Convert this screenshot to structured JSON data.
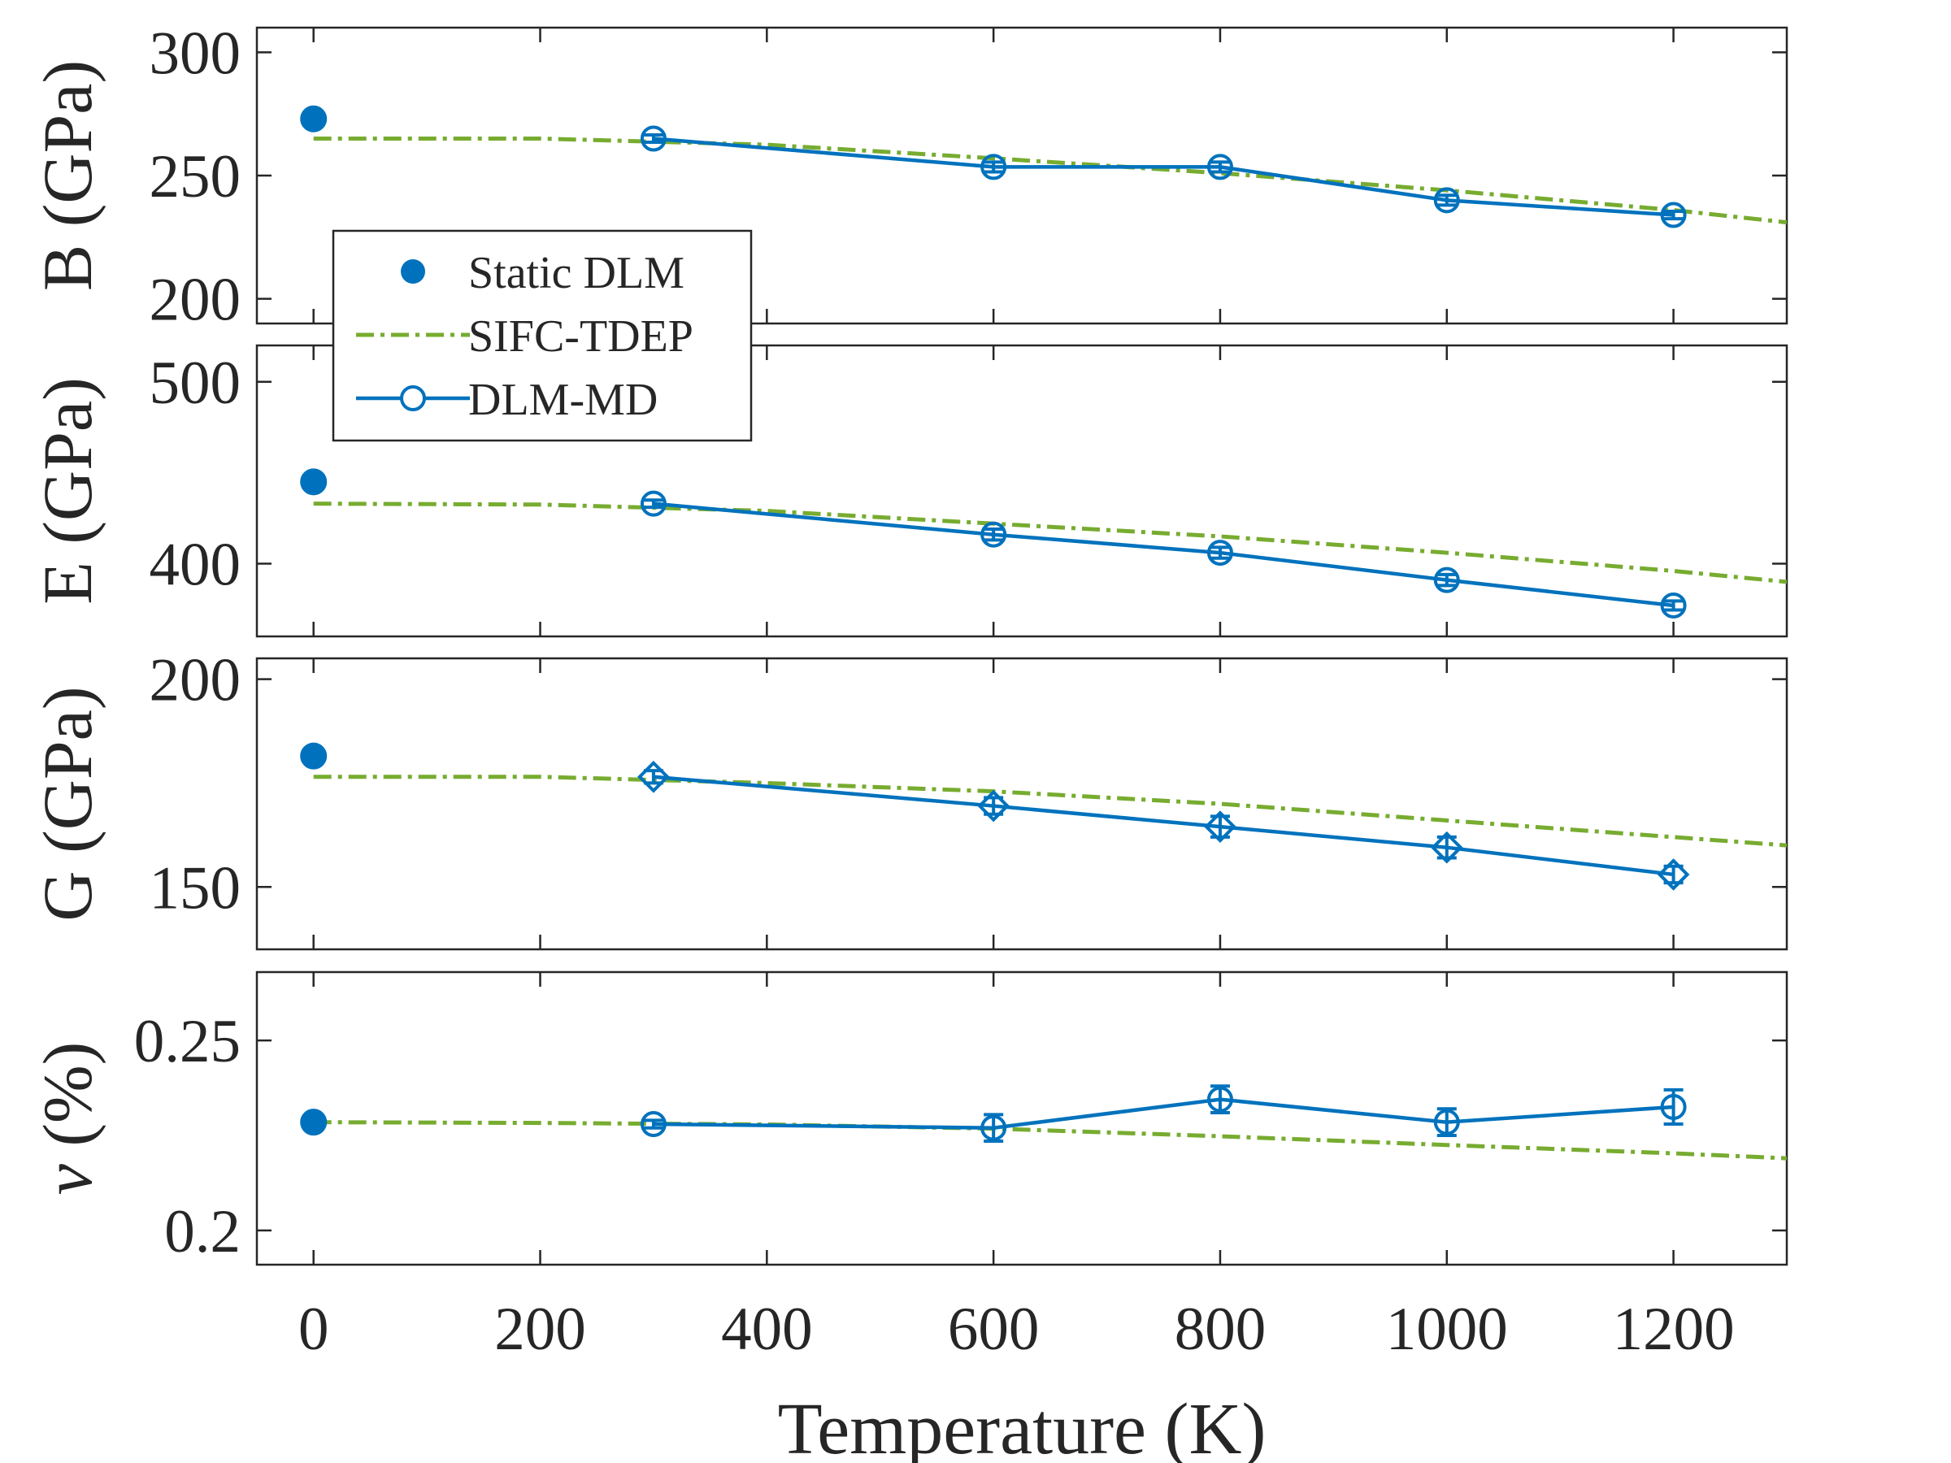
{
  "chart_data": {
    "type": "line",
    "xlabel": "Temperature (K)",
    "xlim": [
      -50,
      1300
    ],
    "xticks": [
      0,
      200,
      400,
      600,
      800,
      1000,
      1200
    ],
    "colors": {
      "static": "#0072bd",
      "dlm_md": "#0072bd",
      "sifc": "#77ac30",
      "axis": "#262626"
    },
    "legend": {
      "position": "top-left",
      "entries": [
        {
          "label": "Static DLM",
          "marker": "filled-circle"
        },
        {
          "label": "SIFC-TDEP",
          "marker": "dash-dot-line"
        },
        {
          "label": "DLM-MD",
          "marker": "line-open-circle"
        }
      ]
    },
    "panels": [
      {
        "id": "B",
        "ylabel": "B (GPa)",
        "ylim": [
          190,
          310
        ],
        "yticks": [
          200,
          250,
          300
        ],
        "ytick_labels": [
          "200",
          "250",
          "300"
        ],
        "static": {
          "x": 0,
          "y": 273
        },
        "sifc": {
          "x": [
            0,
            200,
            400,
            600,
            800,
            1000,
            1200,
            1300
          ],
          "y": [
            265,
            265,
            262.5,
            257,
            251,
            244,
            236,
            231
          ]
        },
        "dlm_md": {
          "marker": "circle",
          "x": [
            300,
            600,
            800,
            1000,
            1200
          ],
          "y": [
            265,
            253.5,
            253.5,
            240,
            234
          ],
          "err": [
            1.5,
            2,
            2,
            2,
            1.5
          ]
        }
      },
      {
        "id": "E",
        "ylabel": "E (GPa)",
        "ylim": [
          360,
          520
        ],
        "yticks": [
          400,
          500
        ],
        "ytick_labels": [
          "400",
          "500"
        ],
        "static": {
          "x": 0,
          "y": 445
        },
        "sifc": {
          "x": [
            0,
            200,
            400,
            600,
            800,
            1000,
            1200,
            1300
          ],
          "y": [
            433,
            432.5,
            429,
            422,
            415,
            406,
            396,
            390
          ]
        },
        "dlm_md": {
          "marker": "circle",
          "x": [
            300,
            600,
            800,
            1000,
            1200
          ],
          "y": [
            433,
            416,
            406,
            391,
            377
          ],
          "err": [
            2,
            3,
            3,
            3,
            2.5
          ]
        }
      },
      {
        "id": "G",
        "ylabel": "G (GPa)",
        "ylim": [
          135,
          205
        ],
        "yticks": [
          150,
          200
        ],
        "ytick_labels": [
          "150",
          "200"
        ],
        "static": {
          "x": 0,
          "y": 181.5
        },
        "sifc": {
          "x": [
            0,
            200,
            400,
            600,
            800,
            1000,
            1200,
            1300
          ],
          "y": [
            176.5,
            176.5,
            175,
            173,
            170,
            166,
            162,
            160
          ]
        },
        "dlm_md": {
          "marker": "diamond",
          "x": [
            300,
            600,
            800,
            1000,
            1200
          ],
          "y": [
            176.5,
            169.5,
            164.5,
            159.5,
            153
          ],
          "err": [
            1.5,
            2,
            2.5,
            2.5,
            2
          ]
        }
      },
      {
        "id": "nu",
        "ylabel": "ν (%)",
        "ylim": [
          0.191,
          0.268
        ],
        "yticks": [
          0.2,
          0.25
        ],
        "ytick_labels": [
          "0.2",
          "0.25"
        ],
        "static": {
          "x": 0,
          "y": 0.2285
        },
        "sifc": {
          "x": [
            0,
            200,
            400,
            600,
            800,
            1000,
            1200,
            1300
          ],
          "y": [
            0.2285,
            0.2283,
            0.2279,
            0.2268,
            0.2248,
            0.2225,
            0.2203,
            0.219
          ]
        },
        "dlm_md": {
          "marker": "circle",
          "x": [
            300,
            600,
            800,
            1000,
            1200
          ],
          "y": [
            0.228,
            0.227,
            0.2345,
            0.2285,
            0.2325
          ],
          "err": [
            0.001,
            0.0035,
            0.0035,
            0.0035,
            0.0045
          ]
        }
      }
    ]
  }
}
